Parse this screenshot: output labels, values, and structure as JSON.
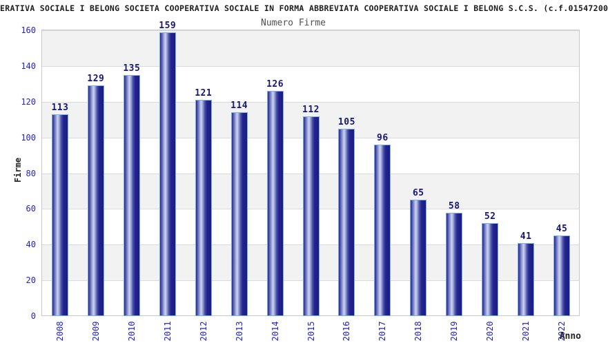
{
  "header": {
    "title": "ERATIVA SOCIALE I BELONG SOCIETA COOPERATIVA SOCIALE IN FORMA ABBREVIATA COOPERATIVA SOCIALE I BELONG S.C.S. (c.f.01547200",
    "subtitle": "Numero Firme"
  },
  "axes": {
    "y_title": "Firme",
    "x_title": "Anno"
  },
  "chart_data": {
    "type": "bar",
    "title": "Numero Firme",
    "categories": [
      "2008",
      "2009",
      "2010",
      "2011",
      "2012",
      "2013",
      "2014",
      "2015",
      "2016",
      "2017",
      "2018",
      "2019",
      "2020",
      "2021",
      "2022"
    ],
    "values": [
      113,
      129,
      135,
      159,
      121,
      114,
      126,
      112,
      105,
      96,
      65,
      58,
      52,
      41,
      45
    ],
    "xlabel": "Anno",
    "ylabel": "Firme",
    "ylim": [
      0,
      160
    ],
    "ytick_step": 20,
    "grid": true,
    "legend_position": "none",
    "colors": {
      "tick_label": "#2222cc",
      "value_label": "#16167a",
      "bar_border": "#7db0e2",
      "bar_edge_dark": "#26268e",
      "bar_mid_light": "#ccd2f0",
      "bar_right_dark": "#1b1b82",
      "band_gray": "#f2f2f2",
      "band_white": "#ffffff",
      "gridline": "#dadada",
      "plot_border": "#c9c9c9"
    }
  }
}
